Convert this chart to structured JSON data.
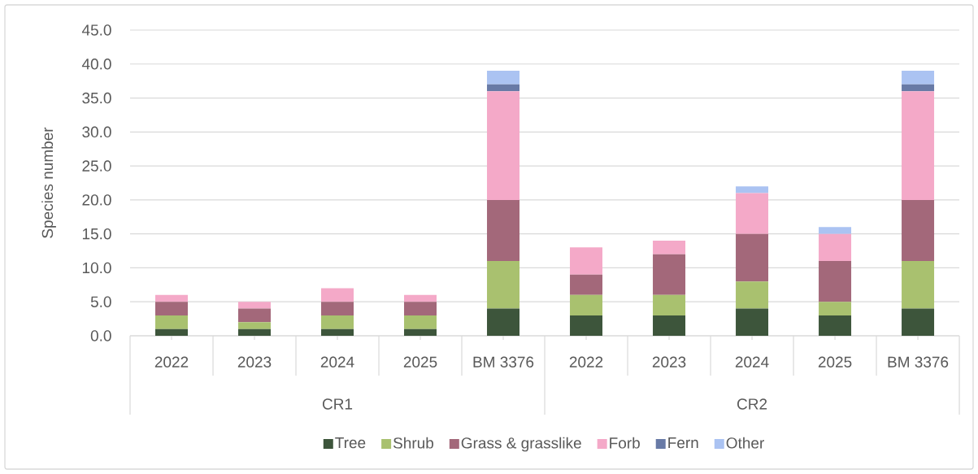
{
  "chart_data": {
    "type": "bar",
    "stacked": true,
    "ylabel": "Species number",
    "categories": [
      "2022",
      "2023",
      "2024",
      "2025",
      "BM 3376",
      "2022",
      "2023",
      "2024",
      "2025",
      "BM 3376"
    ],
    "annotations": [
      "CR1",
      "CR2"
    ],
    "series": [
      {
        "name": "Tree",
        "color": "#3d553b",
        "values": [
          1,
          1,
          1,
          1,
          4,
          3,
          3,
          4,
          3,
          4
        ]
      },
      {
        "name": "Shrub",
        "color": "#a9c16f",
        "values": [
          2,
          1,
          2,
          2,
          7,
          3,
          3,
          4,
          2,
          7
        ]
      },
      {
        "name": "Grass & grasslike",
        "color": "#a3687a",
        "values": [
          2,
          2,
          2,
          2,
          9,
          3,
          6,
          7,
          6,
          9
        ]
      },
      {
        "name": "Forb",
        "color": "#f4a9c8",
        "values": [
          1,
          1,
          2,
          1,
          16,
          4,
          2,
          6,
          4,
          16
        ]
      },
      {
        "name": "Fern",
        "color": "#687aa6",
        "values": [
          0,
          0,
          0,
          0,
          1,
          0,
          0,
          0,
          0,
          1
        ]
      },
      {
        "name": "Other",
        "color": "#abc3f2",
        "values": [
          0,
          0,
          0,
          0,
          2,
          0,
          0,
          1,
          1,
          2
        ]
      }
    ],
    "ylim": [
      0,
      45
    ],
    "yticks": [
      {
        "value": 0,
        "label": "0.0"
      },
      {
        "value": 5,
        "label": "5.0"
      },
      {
        "value": 10,
        "label": "10.0"
      },
      {
        "value": 15,
        "label": "15.0"
      },
      {
        "value": 20,
        "label": "20.0"
      },
      {
        "value": 25,
        "label": "25.0"
      },
      {
        "value": 30,
        "label": "30.0"
      },
      {
        "value": 35,
        "label": "35.0"
      },
      {
        "value": 40,
        "label": "40.0"
      },
      {
        "value": 45,
        "label": "45.0"
      }
    ],
    "grid": "y",
    "legend": "bottom"
  }
}
